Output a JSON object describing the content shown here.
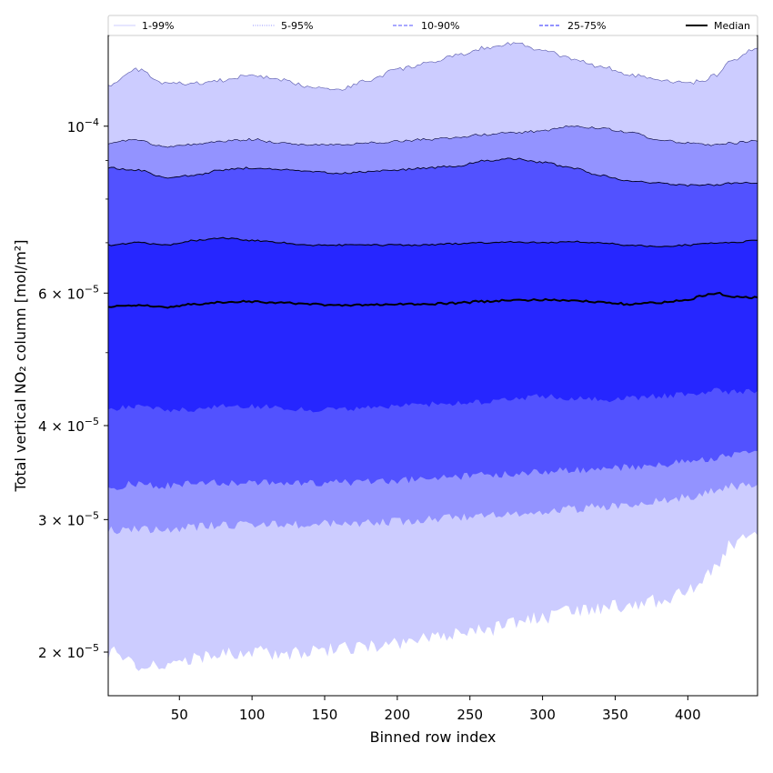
{
  "chart_data": {
    "type": "area",
    "xlabel": "Binned row index",
    "ylabel": "Total vertical NO₂ column [mol/m²]",
    "xlim": [
      1,
      448
    ],
    "ylim": [
      1.75e-05,
      0.000132
    ],
    "yscale": "log",
    "x_ticks": [
      50,
      100,
      150,
      200,
      250,
      300,
      350,
      400
    ],
    "y_ticks": [
      {
        "value": 0.0001,
        "mant": "10",
        "exp": "−4"
      },
      {
        "value": 6e-05,
        "mant": "6 × 10",
        "exp": "−5"
      },
      {
        "value": 4e-05,
        "mant": "4 × 10",
        "exp": "−5"
      },
      {
        "value": 3e-05,
        "mant": "3 × 10",
        "exp": "−5"
      },
      {
        "value": 2e-05,
        "mant": "2 × 10",
        "exp": "−5"
      }
    ],
    "y_minor_ticks": [
      7e-05,
      8e-05,
      9e-05,
      5e-05
    ],
    "x": [
      1,
      20,
      40,
      60,
      80,
      100,
      120,
      140,
      160,
      180,
      200,
      220,
      240,
      260,
      280,
      300,
      320,
      340,
      360,
      380,
      400,
      410,
      420,
      430,
      448
    ],
    "bands": [
      {
        "name": "1-99%",
        "color": "#ccccff",
        "lower": [
          2e-05,
          1.93e-05,
          1.9e-05,
          1.96e-05,
          1.99e-05,
          2e-05,
          1.99e-05,
          2e-05,
          2.02e-05,
          2.03e-05,
          2.05e-05,
          2.08e-05,
          2.11e-05,
          2.14e-05,
          2.18e-05,
          2.22e-05,
          2.26e-05,
          2.29e-05,
          2.31e-05,
          2.34e-05,
          2.42e-05,
          2.5e-05,
          2.62e-05,
          2.8e-05,
          2.86e-05
        ],
        "upper": [
          0.000113,
          0.000119,
          0.000114,
          0.000114,
          0.000115,
          0.000117,
          0.000115,
          0.000113,
          0.000112,
          0.000115,
          0.000119,
          0.000121,
          0.000124,
          0.000127,
          0.000129,
          0.000126,
          0.000123,
          0.00012,
          0.000117,
          0.000115,
          0.000114,
          0.000115,
          0.000117,
          0.000122,
          0.000127
        ]
      },
      {
        "name": "5-95%",
        "color": "#9393ff",
        "lower": [
          2.9e-05,
          2.92e-05,
          2.9e-05,
          2.93e-05,
          2.95e-05,
          2.96e-05,
          2.95e-05,
          2.96e-05,
          2.97e-05,
          2.97e-05,
          2.98e-05,
          3e-05,
          3.02e-05,
          3.04e-05,
          3.06e-05,
          3.08e-05,
          3.1e-05,
          3.12e-05,
          3.14e-05,
          3.17e-05,
          3.21e-05,
          3.24e-05,
          3.29e-05,
          3.32e-05,
          3.34e-05
        ],
        "upper": [
          9.5e-05,
          9.6e-05,
          9.4e-05,
          9.45e-05,
          9.55e-05,
          9.6e-05,
          9.5e-05,
          9.45e-05,
          9.45e-05,
          9.5e-05,
          9.55e-05,
          9.6e-05,
          9.65e-05,
          9.75e-05,
          9.8e-05,
          9.85e-05,
          0.0001,
          9.95e-05,
          9.8e-05,
          9.6e-05,
          9.5e-05,
          9.45e-05,
          9.45e-05,
          9.5e-05,
          9.55e-05
        ]
      },
      {
        "name": "10-90%",
        "color": "#5252ff",
        "lower": [
          3.3e-05,
          3.35e-05,
          3.33e-05,
          3.35e-05,
          3.36e-05,
          3.36e-05,
          3.35e-05,
          3.35e-05,
          3.36e-05,
          3.37e-05,
          3.38e-05,
          3.4e-05,
          3.42e-05,
          3.44e-05,
          3.45e-05,
          3.47e-05,
          3.49e-05,
          3.5e-05,
          3.52e-05,
          3.55e-05,
          3.58e-05,
          3.6e-05,
          3.63e-05,
          3.66e-05,
          3.7e-05
        ],
        "upper": [
          8.8e-05,
          8.75e-05,
          8.55e-05,
          8.6e-05,
          8.75e-05,
          8.8e-05,
          8.75e-05,
          8.7e-05,
          8.65e-05,
          8.7e-05,
          8.75e-05,
          8.8e-05,
          8.85e-05,
          9e-05,
          9.05e-05,
          8.95e-05,
          8.8e-05,
          8.6e-05,
          8.45e-05,
          8.4e-05,
          8.35e-05,
          8.35e-05,
          8.35e-05,
          8.4e-05,
          8.4e-05
        ]
      },
      {
        "name": "25-75%",
        "color": "#2626ff",
        "lower": [
          4.2e-05,
          4.25e-05,
          4.2e-05,
          4.2e-05,
          4.25e-05,
          4.25e-05,
          4.22e-05,
          4.2e-05,
          4.2e-05,
          4.22e-05,
          4.25e-05,
          4.27e-05,
          4.28e-05,
          4.3e-05,
          4.35e-05,
          4.38e-05,
          4.35e-05,
          4.33e-05,
          4.35e-05,
          4.38e-05,
          4.4e-05,
          4.42e-05,
          4.45e-05,
          4.43e-05,
          4.45e-05
        ],
        "upper": [
          6.95e-05,
          7e-05,
          6.95e-05,
          7.05e-05,
          7.1e-05,
          7.05e-05,
          7e-05,
          6.95e-05,
          6.95e-05,
          6.95e-05,
          6.95e-05,
          6.95e-05,
          6.98e-05,
          7e-05,
          7.02e-05,
          7e-05,
          7.02e-05,
          7e-05,
          6.95e-05,
          6.92e-05,
          6.95e-05,
          6.97e-05,
          7e-05,
          7e-05,
          7.05e-05
        ]
      }
    ],
    "median": {
      "name": "Median",
      "color": "#000000",
      "values": [
        5.75e-05,
        5.78e-05,
        5.75e-05,
        5.8e-05,
        5.83e-05,
        5.85e-05,
        5.82e-05,
        5.8e-05,
        5.78e-05,
        5.79e-05,
        5.8e-05,
        5.8e-05,
        5.82e-05,
        5.85e-05,
        5.87e-05,
        5.88e-05,
        5.87e-05,
        5.84e-05,
        5.8e-05,
        5.83e-05,
        5.88e-05,
        5.95e-05,
        6e-05,
        5.93e-05,
        5.92e-05
      ]
    },
    "legend": {
      "placement": "top",
      "entries": [
        {
          "label": "1-99%",
          "color": "#ccccff",
          "style": "solid"
        },
        {
          "label": "5-95%",
          "color": "#9393ff",
          "style": "dotted"
        },
        {
          "label": "10-90%",
          "color": "#5252ff",
          "style": "dashed"
        },
        {
          "label": "25-75%",
          "color": "#2626ff",
          "style": "dashed"
        },
        {
          "label": "Median",
          "color": "#000000",
          "style": "solid"
        }
      ]
    },
    "grid": false
  }
}
